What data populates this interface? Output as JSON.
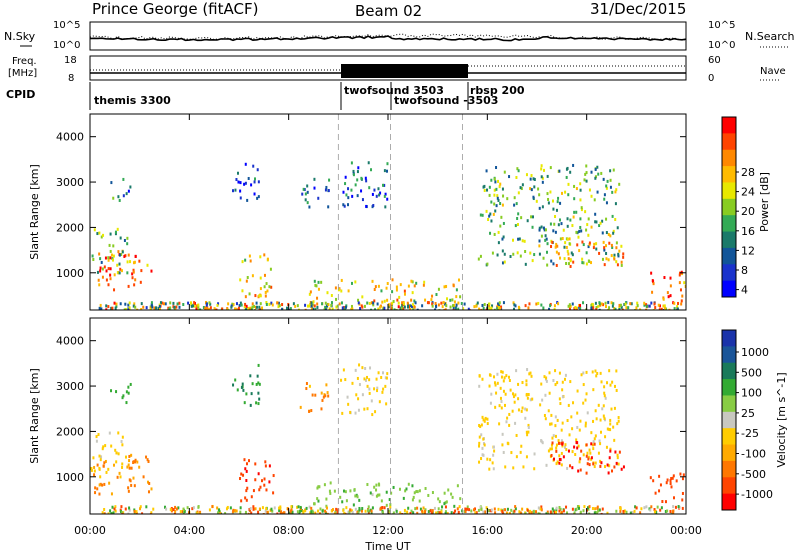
{
  "header": {
    "station": "Prince George (fitACF)",
    "beam": "Beam 02",
    "date": "31/Dec/2015"
  },
  "left_labels": {
    "nsky": "N.Sky",
    "freq_line1": "Freq.",
    "freq_line2": "[MHz]",
    "cpid": "CPID"
  },
  "right_labels": {
    "nsearch": "N.Search",
    "nave": "Nave"
  },
  "noise_axis": {
    "left_top": "10^5",
    "left_bottom": "10^0",
    "right_top": "10^5",
    "right_bottom": "10^0"
  },
  "freq_axis": {
    "left_top": "18",
    "left_bottom": "8",
    "right_top": "60",
    "right_bottom": "0"
  },
  "cpid_segments": [
    {
      "label": "themis 3300"
    },
    {
      "label": "twofsound 3503"
    },
    {
      "label": "twofsound -3503"
    },
    {
      "label": "rbsp 200"
    }
  ],
  "panels": {
    "range_ylabel": "Slant Range [km]",
    "y_ticks": [
      "4000",
      "3000",
      "2000",
      "1000"
    ],
    "x_ticks": [
      "00:00",
      "04:00",
      "08:00",
      "12:00",
      "16:00",
      "20:00",
      "00:00"
    ],
    "xlabel": "Time UT"
  },
  "power_colorbar": {
    "title": "Power [dB]",
    "ticks": [
      "28",
      "24",
      "20",
      "16",
      "12",
      "8",
      "4"
    ],
    "colors": [
      "#ff0000",
      "#ff4400",
      "#ff8800",
      "#ffbb00",
      "#e8e800",
      "#88cc22",
      "#33aa55",
      "#1a7a6a",
      "#115599",
      "#1a33cc",
      "#0000ff"
    ]
  },
  "velocity_colorbar": {
    "title": "Velocity [m s^-1]",
    "ticks": [
      "1000",
      "500",
      "100",
      "25",
      "-25",
      "-100",
      "-500",
      "-1000"
    ],
    "colors": [
      "#1a33aa",
      "#1a5599",
      "#1a7a5a",
      "#33aa33",
      "#88cc44",
      "#c8c8c0",
      "#ffcc00",
      "#ffaa00",
      "#ff7700",
      "#ff4400",
      "#ff0000"
    ]
  },
  "chart_data": {
    "type": "heatmap",
    "title": "Prince George (fitACF) Beam 02 31/Dec/2015",
    "x_range_hours": [
      0,
      24
    ],
    "y_range_km": [
      180,
      4500
    ],
    "scatter_regions": [
      {
        "t0": 0.1,
        "t1": 2.5,
        "r0": 650,
        "r1": 1550,
        "power": 26,
        "velocity": -60
      },
      {
        "t0": 0.0,
        "t1": 1.5,
        "r0": 1000,
        "r1": 2000,
        "power": 14,
        "velocity": 10
      },
      {
        "t0": 0.8,
        "t1": 1.6,
        "r0": 2600,
        "r1": 3100,
        "power": 8,
        "velocity": 200
      },
      {
        "t0": 5.7,
        "t1": 6.8,
        "r0": 2600,
        "r1": 3500,
        "power": 6,
        "velocity": 300
      },
      {
        "t0": 6.0,
        "t1": 7.4,
        "r0": 500,
        "r1": 1500,
        "power": 20,
        "velocity": -400
      },
      {
        "t0": 8.4,
        "t1": 9.6,
        "r0": 2400,
        "r1": 3100,
        "power": 6,
        "velocity": -50
      },
      {
        "t0": 8.8,
        "t1": 15.0,
        "r0": 250,
        "r1": 900,
        "power": 20,
        "velocity": 80
      },
      {
        "t0": 10.0,
        "t1": 12.0,
        "r0": 2400,
        "r1": 3500,
        "power": 8,
        "velocity": 15
      },
      {
        "t0": 15.6,
        "t1": 21.3,
        "r0": 1200,
        "r1": 3400,
        "power": 14,
        "velocity": 5
      },
      {
        "t0": 18.5,
        "t1": 21.5,
        "r0": 1100,
        "r1": 1800,
        "power": 22,
        "velocity": -500
      },
      {
        "t0": 22.5,
        "t1": 24.0,
        "r0": 300,
        "r1": 1100,
        "power": 26,
        "velocity": -300
      }
    ]
  }
}
